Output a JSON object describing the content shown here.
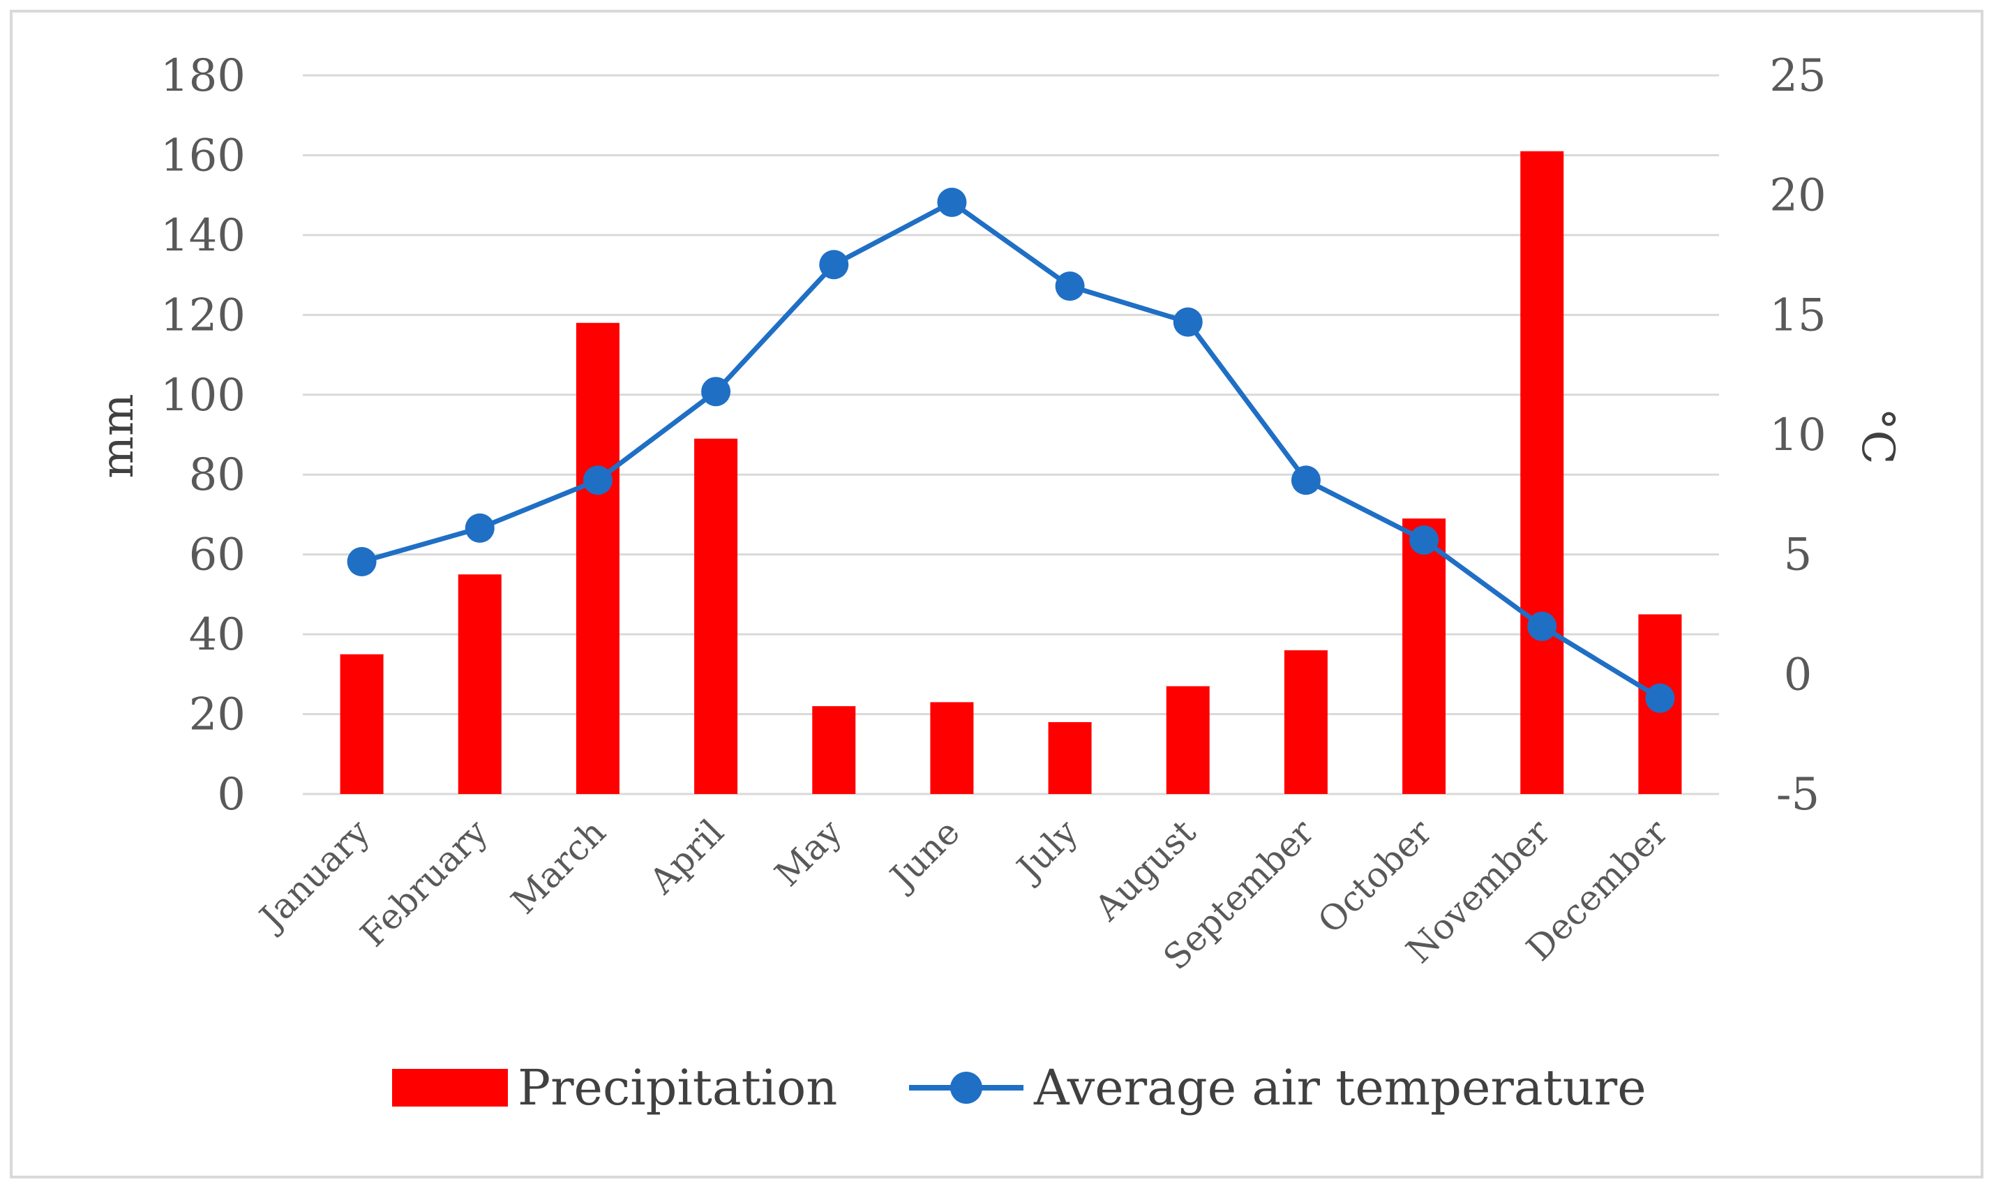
{
  "chart_data": {
    "type": "bar-line-combo",
    "title": "",
    "categories": [
      "January",
      "February",
      "March",
      "April",
      "May",
      "June",
      "July",
      "August",
      "September",
      "October",
      "November",
      "December"
    ],
    "series": [
      {
        "name": "Precipitation",
        "type": "bar",
        "axis": "left",
        "color": "#ff0000",
        "values": [
          35,
          55,
          118,
          89,
          22,
          23,
          18,
          27,
          36,
          69,
          161,
          45
        ]
      },
      {
        "name": "Average air temperature",
        "type": "line",
        "axis": "right",
        "color": "#1f6fc5",
        "values": [
          4.7,
          6.1,
          8.1,
          11.8,
          17.1,
          19.7,
          16.2,
          14.7,
          8.1,
          5.6,
          2.0,
          -1.0
        ]
      }
    ],
    "ylabel": "mm",
    "ylabel_right": "°C",
    "ylim": [
      0,
      180
    ],
    "y_ticks": [
      0,
      20,
      40,
      60,
      80,
      100,
      120,
      140,
      160,
      180
    ],
    "ylim_right": [
      -5,
      25
    ],
    "y_right_ticks": [
      -5,
      0,
      5,
      10,
      15,
      20,
      25
    ],
    "grid": true,
    "legend_position": "bottom"
  }
}
